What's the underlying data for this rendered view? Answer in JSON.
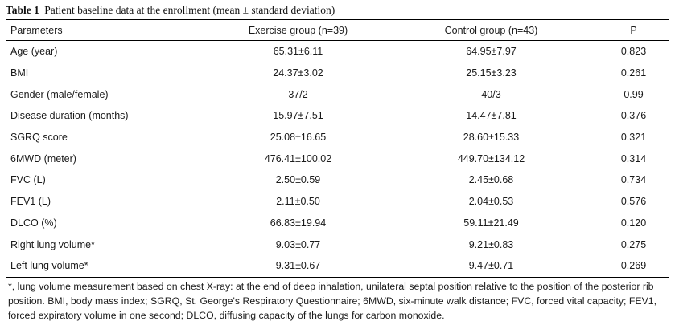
{
  "caption": {
    "label": "Table 1",
    "title": "Patient baseline data at the enrollment (mean ± standard deviation)"
  },
  "headers": [
    "Parameters",
    "Exercise group (n=39)",
    "Control group (n=43)",
    "P"
  ],
  "rows": [
    {
      "parameter": "Age (year)",
      "exercise": "65.31±6.11",
      "control": "64.95±7.97",
      "p": "0.823"
    },
    {
      "parameter": "BMI",
      "exercise": "24.37±3.02",
      "control": "25.15±3.23",
      "p": "0.261"
    },
    {
      "parameter": "Gender (male/female)",
      "exercise": "37/2",
      "control": "40/3",
      "p": "0.99"
    },
    {
      "parameter": "Disease duration (months)",
      "exercise": "15.97±7.51",
      "control": "14.47±7.81",
      "p": "0.376"
    },
    {
      "parameter": "SGRQ score",
      "exercise": "25.08±16.65",
      "control": "28.60±15.33",
      "p": "0.321"
    },
    {
      "parameter": "6MWD (meter)",
      "exercise": "476.41±100.02",
      "control": "449.70±134.12",
      "p": "0.314"
    },
    {
      "parameter": "FVC (L)",
      "exercise": "2.50±0.59",
      "control": "2.45±0.68",
      "p": "0.734"
    },
    {
      "parameter": "FEV1 (L)",
      "exercise": "2.11±0.50",
      "control": "2.04±0.53",
      "p": "0.576"
    },
    {
      "parameter": "DLCO (%)",
      "exercise": "66.83±19.94",
      "control": "59.11±21.49",
      "p": "0.120"
    },
    {
      "parameter": "Right lung volume*",
      "exercise": "9.03±0.77",
      "control": "9.21±0.83",
      "p": "0.275"
    },
    {
      "parameter": "Left lung volume*",
      "exercise": "9.31±0.67",
      "control": "9.47±0.71",
      "p": "0.269"
    }
  ],
  "footnote": "*, lung volume measurement based on chest X-ray: at the end of deep inhalation, unilateral septal position relative to the position of the posterior rib position. BMI, body mass index; SGRQ, St. George's Respiratory Questionnaire; 6MWD, six-minute walk distance; FVC, forced vital capacity; FEV1, forced expiratory volume in one second; DLCO, diffusing capacity of the lungs for carbon monoxide."
}
